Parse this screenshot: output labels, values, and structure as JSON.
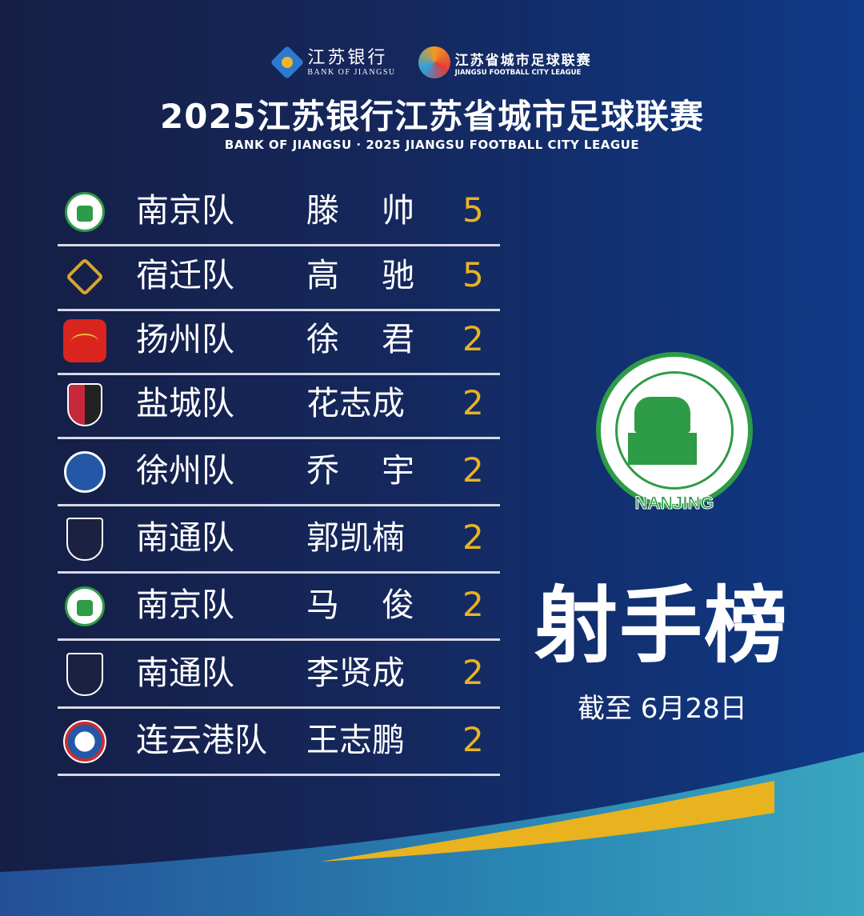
{
  "header": {
    "bank_logo_cn": "江苏银行",
    "bank_logo_en": "BANK OF JIANGSU",
    "league_logo_cn": "江苏省城市足球联赛",
    "league_logo_en": "JIANGSU FOOTBALL CITY LEAGUE",
    "title": "2025江苏银行江苏省城市足球联赛",
    "subtitle": "BANK OF JIANGSU · 2025 JIANGSU FOOTBALL CITY LEAGUE"
  },
  "rankings": [
    {
      "team": "南京队",
      "player": "滕帅",
      "goals": "5",
      "logo": "nanjing"
    },
    {
      "team": "宿迁队",
      "player": "高驰",
      "goals": "5",
      "logo": "suqian"
    },
    {
      "team": "扬州队",
      "player": "徐君",
      "goals": "2",
      "logo": "yangzhou"
    },
    {
      "team": "盐城队",
      "player": "花志成",
      "goals": "2",
      "logo": "yancheng"
    },
    {
      "team": "徐州队",
      "player": "乔宇",
      "goals": "2",
      "logo": "xuzhou"
    },
    {
      "team": "南通队",
      "player": "郭凯楠",
      "goals": "2",
      "logo": "nantong"
    },
    {
      "team": "南京队",
      "player": "马俊",
      "goals": "2",
      "logo": "nanjing"
    },
    {
      "team": "南通队",
      "player": "李贤成",
      "goals": "2",
      "logo": "nantong"
    },
    {
      "team": "连云港队",
      "player": "王志鹏",
      "goals": "2",
      "logo": "lianyungang"
    }
  ],
  "feature": {
    "logo_text": "NANJING",
    "headline": "射手榜",
    "date": "截至 6月28日"
  },
  "colors": {
    "score": "#e8b321",
    "accent_green": "#2e9b47",
    "swoosh_yellow": "#e8b31f"
  }
}
